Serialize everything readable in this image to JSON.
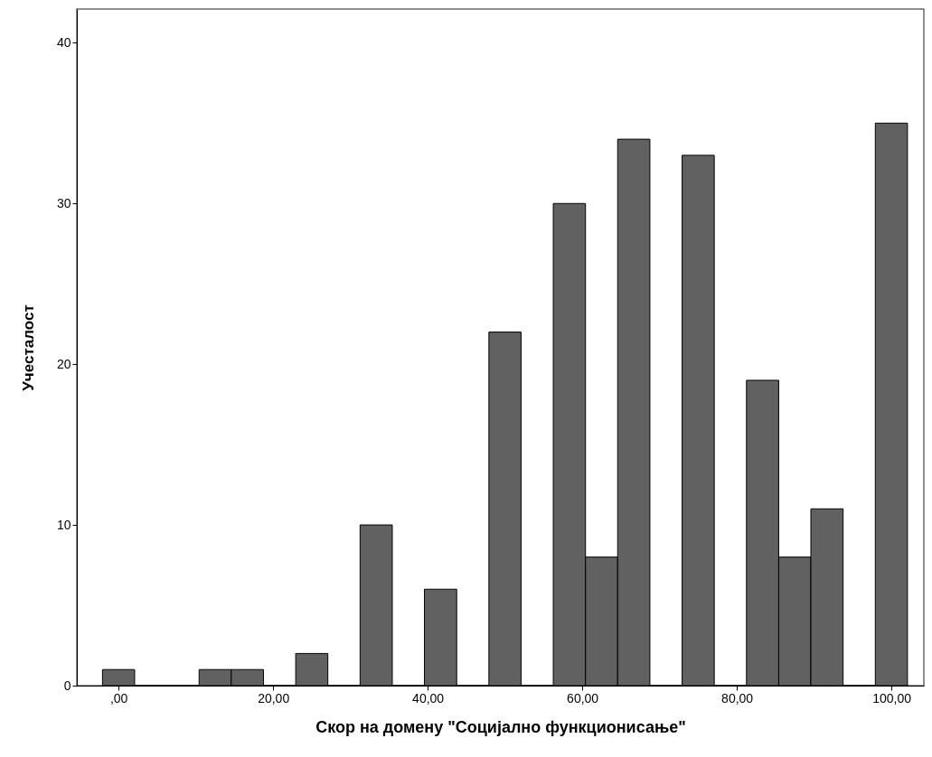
{
  "chart_data": {
    "type": "histogram",
    "xlabel": "Скор на домену \"Социјално функционисање\"",
    "ylabel": "Учесталост",
    "bins": [
      -2.08,
      2.08,
      6.25,
      10.42,
      14.58,
      18.75,
      22.92,
      27.08,
      31.25,
      35.42,
      39.58,
      43.75,
      47.92,
      52.08,
      56.25,
      60.42,
      64.58,
      68.75,
      72.92,
      77.08,
      81.25,
      85.42,
      89.58,
      93.75,
      97.92,
      102.08
    ],
    "values": [
      1,
      0,
      0,
      1,
      1,
      0,
      2,
      0,
      10,
      0,
      6,
      0,
      22,
      0,
      30,
      8,
      34,
      0,
      33,
      0,
      19,
      8,
      11,
      0,
      35
    ],
    "color": "#616161",
    "xlim": [
      -5.4,
      104.2
    ],
    "xticks": [
      {
        "value": 0,
        "label": ",00"
      },
      {
        "value": 20,
        "label": "20,00"
      },
      {
        "value": 40,
        "label": "40,00"
      },
      {
        "value": 60,
        "label": "60,00"
      },
      {
        "value": 80,
        "label": "80,00"
      },
      {
        "value": 100,
        "label": "100,00"
      }
    ],
    "ylim": [
      0,
      42.1
    ],
    "yticks": [
      0,
      10,
      20,
      30,
      40
    ],
    "grid": false
  }
}
